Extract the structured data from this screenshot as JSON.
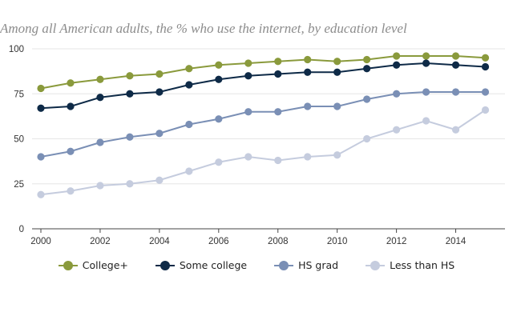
{
  "chart_data": {
    "type": "line",
    "title": "Among all American adults, the % who use the internet, by education level",
    "xlabel": "",
    "ylabel": "",
    "x": [
      2000,
      2001,
      2002,
      2003,
      2004,
      2005,
      2006,
      2007,
      2008,
      2009,
      2010,
      2011,
      2012,
      2013,
      2014,
      2015
    ],
    "xticks": [
      "2000",
      "2002",
      "2004",
      "2006",
      "2008",
      "2010",
      "2012",
      "2014"
    ],
    "xlim": [
      2000,
      2015.5
    ],
    "ylim": [
      0,
      100
    ],
    "yticks": [
      "0",
      "25",
      "50",
      "75",
      "100"
    ],
    "grid": true,
    "legend_position": "bottom",
    "series": [
      {
        "name": "College+",
        "color": "#8a9a3c",
        "values": [
          78,
          81,
          83,
          85,
          86,
          89,
          91,
          92,
          93,
          94,
          93,
          94,
          96,
          96,
          96,
          95
        ]
      },
      {
        "name": "Some college",
        "color": "#0e2a47",
        "values": [
          67,
          68,
          73,
          75,
          76,
          80,
          83,
          85,
          86,
          87,
          87,
          89,
          91,
          92,
          91,
          90
        ]
      },
      {
        "name": "HS grad",
        "color": "#7a8fb5",
        "values": [
          40,
          43,
          48,
          51,
          53,
          58,
          61,
          65,
          65,
          68,
          68,
          72,
          75,
          76,
          76,
          76
        ]
      },
      {
        "name": "Less than HS",
        "color": "#c5ccde",
        "values": [
          19,
          21,
          24,
          25,
          27,
          32,
          37,
          40,
          38,
          40,
          41,
          50,
          55,
          60,
          55,
          66
        ]
      }
    ]
  }
}
